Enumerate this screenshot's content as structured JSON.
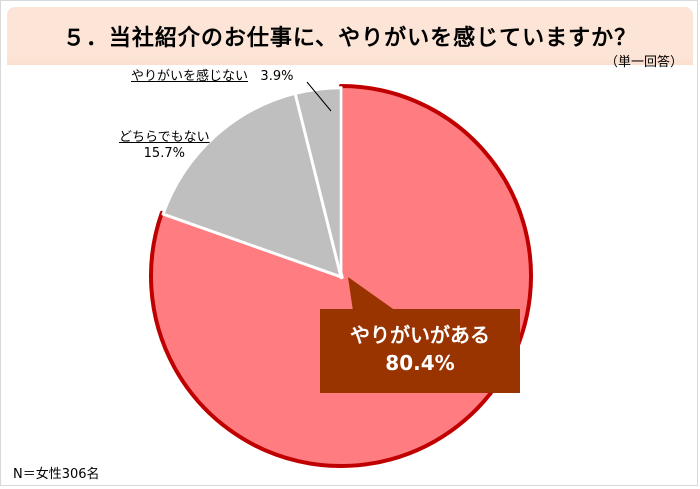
{
  "header": {
    "title": "５．当社紹介のお仕事に、やりがいを感じていますか？",
    "note": "（単一回答）"
  },
  "footnote": "N＝女性306名",
  "chart_data": {
    "type": "pie",
    "categories": [
      "やりがいがある",
      "どちらでもない",
      "やりがいを感じない"
    ],
    "values": [
      80.4,
      15.7,
      3.9
    ],
    "value_labels": [
      "80.4%",
      "15.7%",
      "3.9%"
    ],
    "colors": [
      "#ff7c80",
      "#bfbfbf",
      "#bfbfbf"
    ],
    "start": "12 o'clock",
    "direction": "clockwise",
    "exploded_slice": "やりがいがある",
    "slice_border_colors": [
      "#c00000",
      "#ffffff",
      "#ffffff"
    ]
  }
}
